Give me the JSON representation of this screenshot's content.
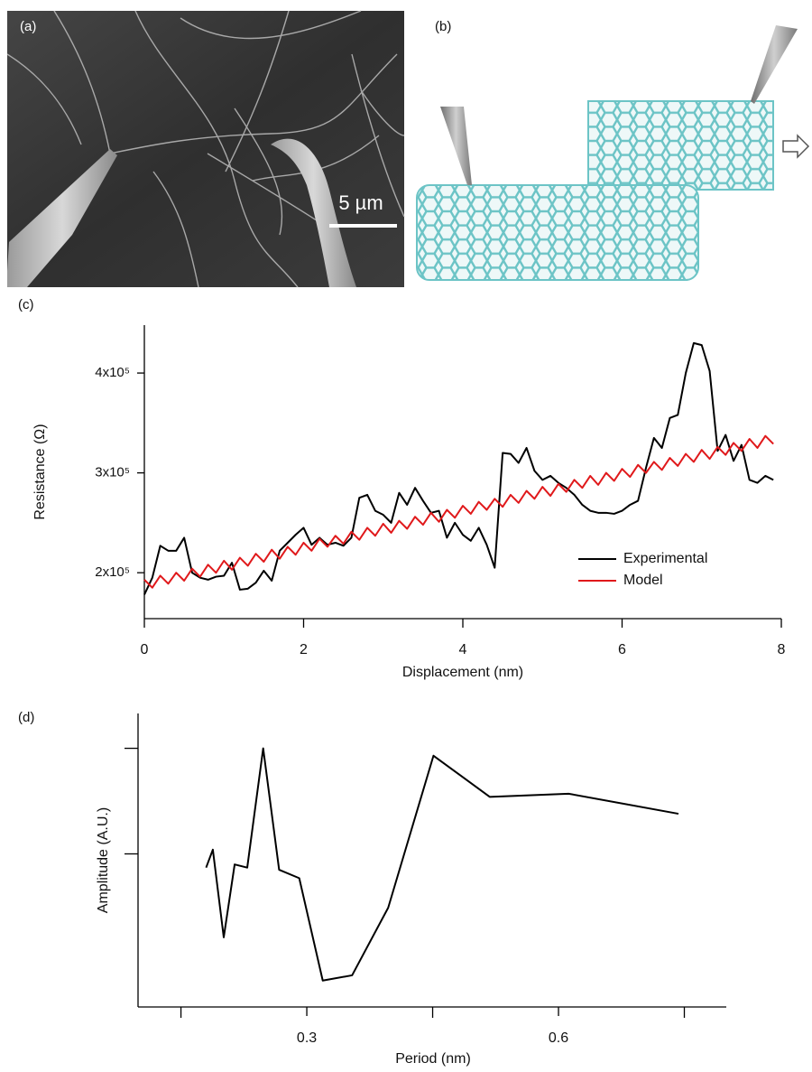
{
  "panels": [
    {
      "label": "(a)",
      "scale_bar": "5 µm"
    },
    {
      "label": "(b)"
    }
  ],
  "chart_data": [
    {
      "type": "line",
      "panel_label": "(c)",
      "x_label": "Displacement (nm)",
      "y_label": "Resistance (Ω)",
      "x": [
        0,
        0.1,
        0.2,
        0.3,
        0.4,
        0.5,
        0.6,
        0.7,
        0.8,
        0.9,
        1,
        1.1,
        1.2,
        1.3,
        1.4,
        1.5,
        1.6,
        1.7,
        1.8,
        1.9,
        2,
        2.1,
        2.2,
        2.3,
        2.4,
        2.5,
        2.6,
        2.7,
        2.8,
        2.9,
        3,
        3.1,
        3.2,
        3.3,
        3.4,
        3.5,
        3.6,
        3.7,
        3.8,
        3.9,
        4,
        4.1,
        4.2,
        4.3,
        4.4,
        4.5,
        4.6,
        4.7,
        4.8,
        4.9,
        5,
        5.1,
        5.2,
        5.3,
        5.4,
        5.5,
        5.6,
        5.7,
        5.8,
        5.9,
        6,
        6.1,
        6.2,
        6.3,
        6.4,
        6.5,
        6.6,
        6.7,
        6.8,
        6.9,
        7,
        7.1,
        7.2,
        7.3,
        7.4,
        7.5,
        7.6,
        7.7,
        7.8,
        7.9
      ],
      "series": [
        {
          "name": "Experimental",
          "color": "#000000",
          "values": [
            178000,
            195000,
            227000,
            222000,
            222000,
            235000,
            200000,
            195000,
            193000,
            196000,
            197000,
            210000,
            183000,
            184000,
            190000,
            202000,
            192000,
            222000,
            230000,
            238000,
            245000,
            228000,
            235000,
            228000,
            230000,
            227000,
            235000,
            275000,
            278000,
            262000,
            258000,
            250000,
            280000,
            268000,
            285000,
            272000,
            260000,
            262000,
            235000,
            250000,
            238000,
            232000,
            245000,
            228000,
            205000,
            320000,
            319000,
            310000,
            325000,
            302000,
            293000,
            297000,
            290000,
            285000,
            278000,
            268000,
            262000,
            260000,
            260000,
            259000,
            262000,
            268000,
            272000,
            305000,
            335000,
            325000,
            355000,
            358000,
            400000,
            430000,
            428000,
            402000,
            322000,
            338000,
            312000,
            328000,
            293000,
            290000,
            297000,
            293000
          ]
        },
        {
          "name": "Model",
          "color": "#e0191b",
          "values": [
            193000,
            185000,
            197000,
            189000,
            200000,
            192000,
            204000,
            196000,
            208000,
            200000,
            212000,
            203000,
            215000,
            207000,
            219000,
            211000,
            223000,
            214000,
            226000,
            218000,
            230000,
            222000,
            234000,
            226000,
            237000,
            229000,
            241000,
            233000,
            245000,
            237000,
            249000,
            240000,
            252000,
            244000,
            256000,
            248000,
            260000,
            251000,
            263000,
            255000,
            267000,
            259000,
            271000,
            263000,
            274000,
            266000,
            278000,
            270000,
            282000,
            274000,
            286000,
            277000,
            289000,
            281000,
            293000,
            285000,
            297000,
            288000,
            300000,
            292000,
            304000,
            296000,
            308000,
            300000,
            311000,
            303000,
            315000,
            307000,
            319000,
            311000,
            323000,
            314000,
            326000,
            318000,
            330000,
            322000,
            334000,
            325000,
            337000,
            329000
          ]
        }
      ],
      "xlim": [
        0,
        8
      ],
      "xticks": [
        0,
        2,
        4,
        6,
        8
      ],
      "ylim": [
        154000,
        448000
      ],
      "yticks": [
        {
          "value": 200000,
          "label": "2x10⁵"
        },
        {
          "value": 300000,
          "label": "3x10⁵"
        },
        {
          "value": 400000,
          "label": "4x10⁵"
        }
      ],
      "legend": "lower right"
    },
    {
      "type": "line",
      "panel_label": "(d)",
      "x_label": "Period (nm)",
      "y_label": "Amplitude (A.U.)",
      "x": [
        0.18,
        0.188,
        0.201,
        0.214,
        0.229,
        0.248,
        0.267,
        0.291,
        0.319,
        0.354,
        0.397,
        0.451,
        0.518,
        0.612,
        0.743
      ],
      "series": [
        {
          "color": "#000000",
          "values": [
            0.87,
            1.04,
            0.21,
            0.9,
            0.87,
            2.0,
            0.85,
            0.77,
            -0.2,
            -0.15,
            0.49,
            1.93,
            1.54,
            1.57,
            1.38
          ]
        }
      ],
      "xlim": [
        0.101,
        0.8
      ],
      "xticks": [
        0.3,
        0.6
      ],
      "xminorticks": [
        0.15,
        0.45,
        0.75
      ],
      "ylim": [
        -0.45,
        2.33
      ],
      "yminorticks": [
        1,
        2
      ]
    }
  ]
}
